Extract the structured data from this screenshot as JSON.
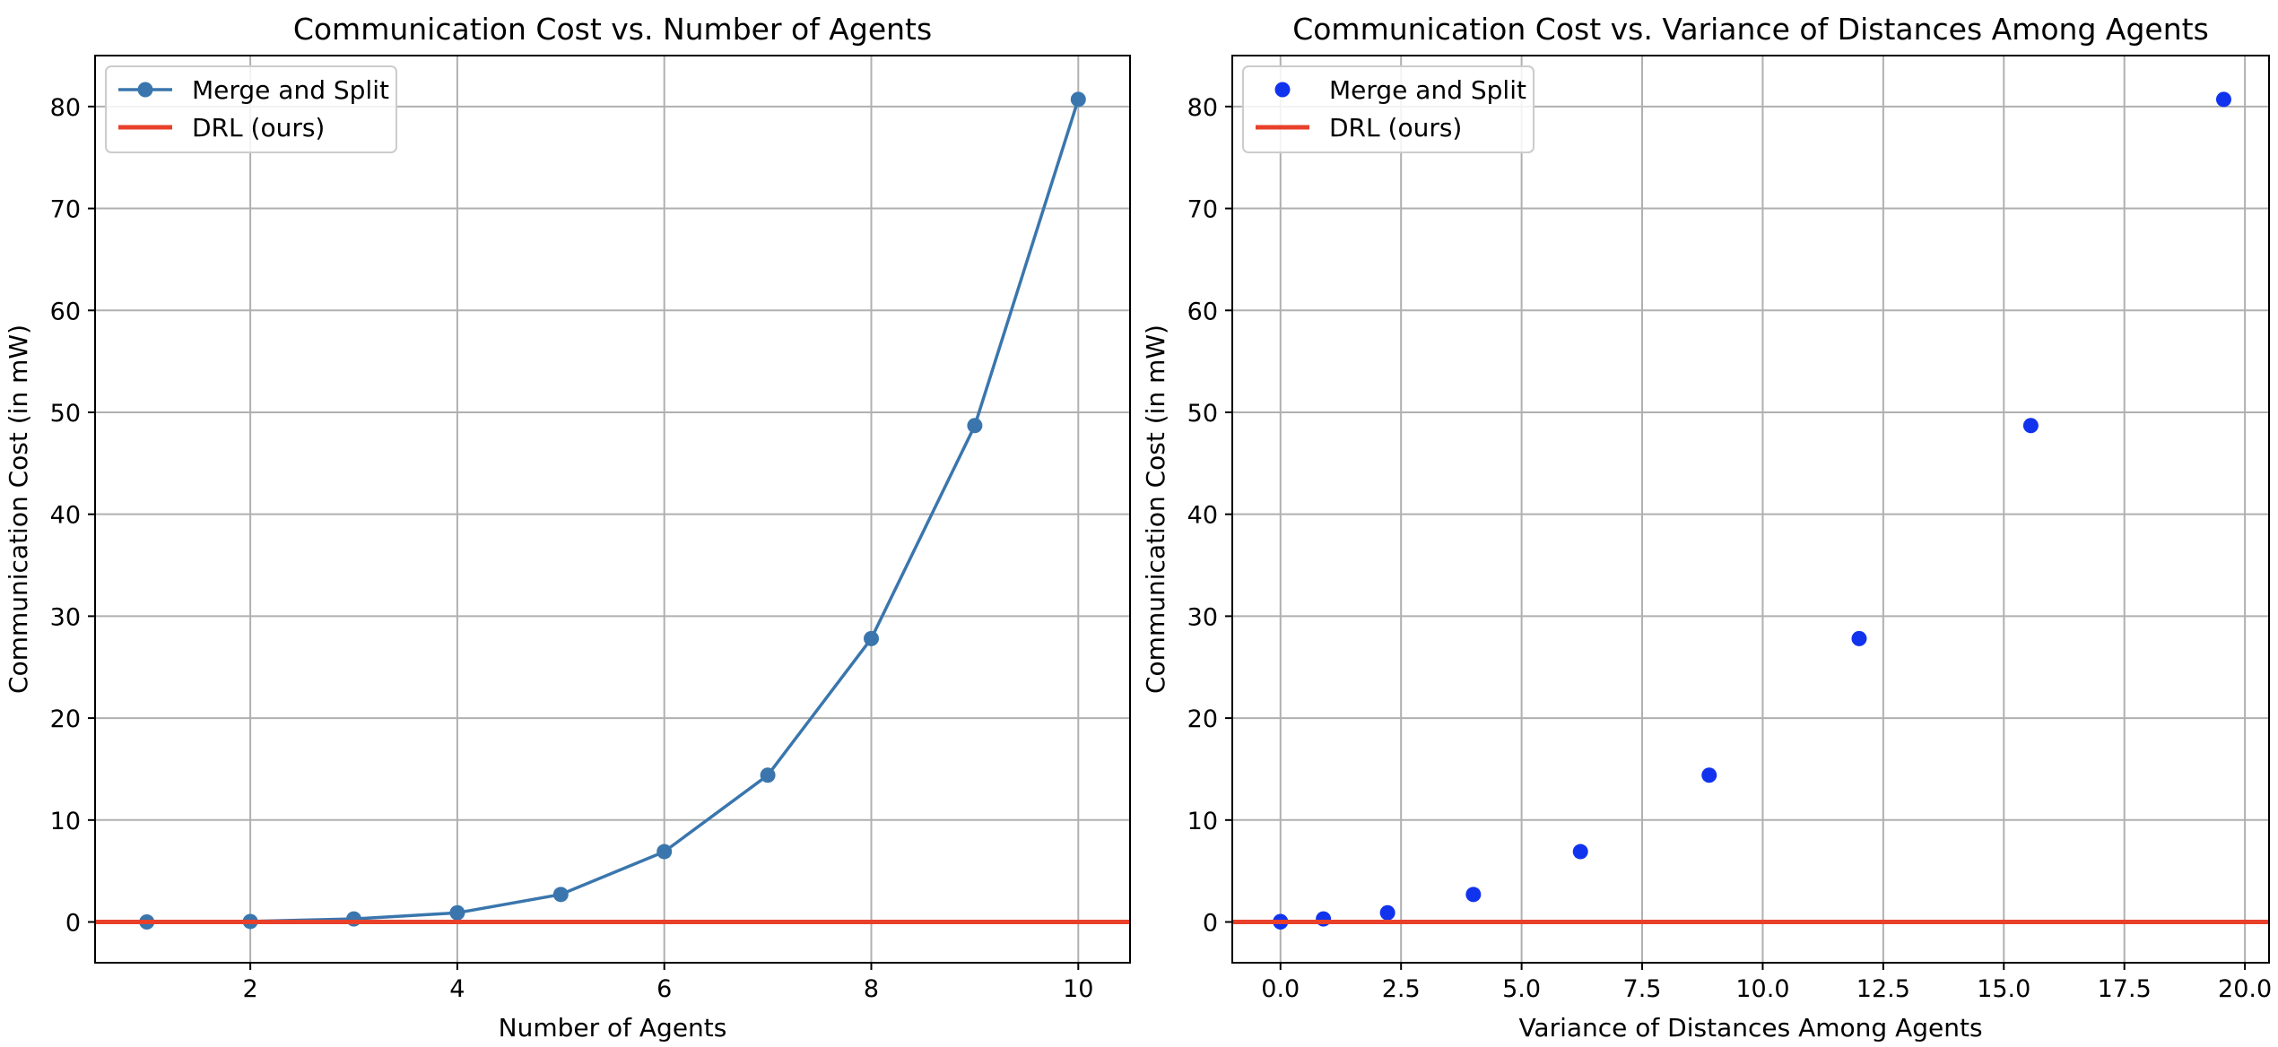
{
  "chart_data": [
    {
      "type": "line",
      "title": "Communication Cost vs. Number of Agents",
      "xlabel": "Number of Agents",
      "ylabel": "Communication Cost (in mW)",
      "xlim": [
        0.5,
        10.5
      ],
      "ylim": [
        -4,
        85
      ],
      "xticks": [
        2,
        4,
        6,
        8,
        10
      ],
      "yticks": [
        0,
        10,
        20,
        30,
        40,
        50,
        60,
        70,
        80
      ],
      "grid": true,
      "legend_position": "top-left",
      "series": [
        {
          "name": "Merge and Split",
          "style": "line-marker",
          "color": "#3a76ad",
          "x": [
            1,
            2,
            3,
            4,
            5,
            6,
            7,
            8,
            9,
            10
          ],
          "y": [
            0,
            0.05,
            0.3,
            0.9,
            2.7,
            6.9,
            14.4,
            27.8,
            48.7,
            80.7
          ]
        },
        {
          "name": "DRL (ours)",
          "style": "hline",
          "color": "#e8402a",
          "y": 0
        }
      ]
    },
    {
      "type": "scatter",
      "title": "Communication Cost vs. Variance of Distances Among Agents",
      "xlabel": "Variance of Distances Among Agents",
      "ylabel": "Communication Cost (in mW)",
      "xlim": [
        -1,
        20.5
      ],
      "ylim": [
        -4,
        85
      ],
      "xticks": [
        0.0,
        2.5,
        5.0,
        7.5,
        10.0,
        12.5,
        15.0,
        17.5,
        20.0
      ],
      "xtick_labels": [
        "0.0",
        "2.5",
        "5.0",
        "7.5",
        "10.0",
        "12.5",
        "15.0",
        "17.5",
        "20.0"
      ],
      "yticks": [
        0,
        10,
        20,
        30,
        40,
        50,
        60,
        70,
        80
      ],
      "grid": true,
      "legend_position": "top-left",
      "series": [
        {
          "name": "Merge and Split",
          "style": "marker",
          "color": "#1133ee",
          "x": [
            0.0,
            0.0,
            0.89,
            2.22,
            4.0,
            6.22,
            8.89,
            12.0,
            15.56,
            19.56
          ],
          "y": [
            0,
            0.05,
            0.3,
            0.9,
            2.7,
            6.9,
            14.4,
            27.8,
            48.7,
            80.7
          ]
        },
        {
          "name": "DRL (ours)",
          "style": "hline",
          "color": "#e8402a",
          "y": 0
        }
      ]
    }
  ]
}
